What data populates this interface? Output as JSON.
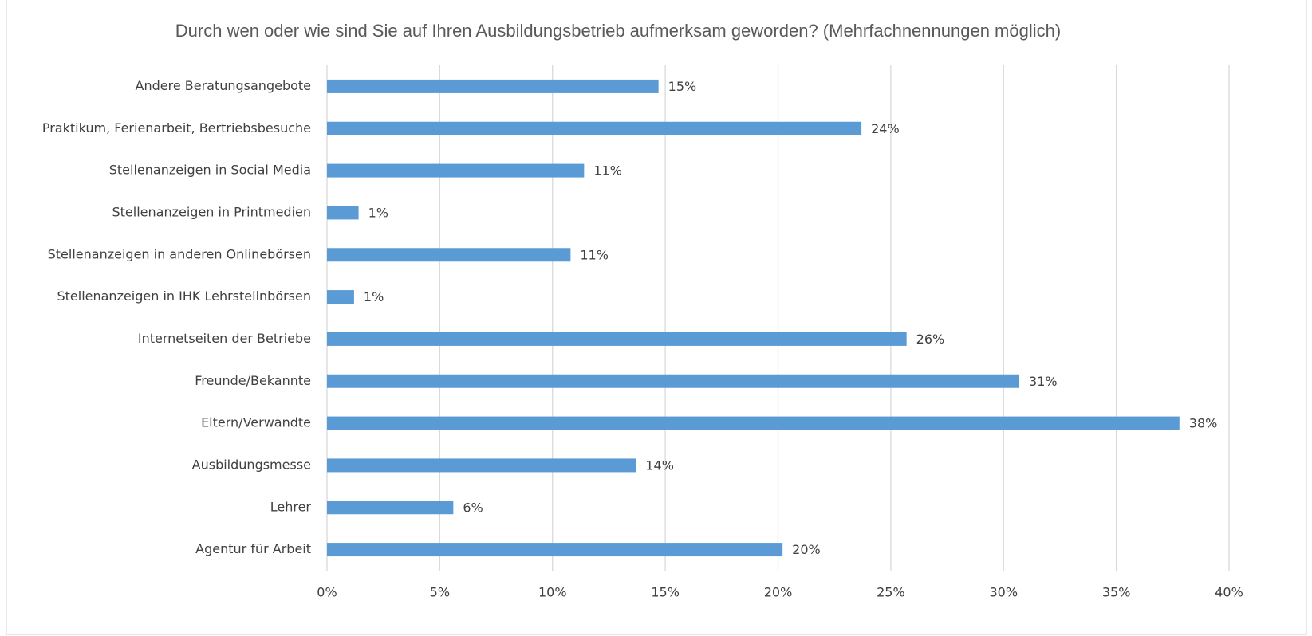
{
  "chart_data": {
    "type": "bar",
    "orientation": "horizontal",
    "title": "Durch wen oder wie sind Sie auf Ihren Ausbildungsbetrieb aufmerksam geworden? (Mehrfachnennungen möglich)",
    "categories": [
      "Andere Beratungsangebote",
      "Praktikum, Ferienarbeit, Bertriebsbesuche",
      "Stellenanzeigen in Social Media",
      "Stellenanzeigen in Printmedien",
      "Stellenanzeigen in anderen Onlinebörsen",
      "Stellenanzeigen in IHK Lehrstellnbörsen",
      "Internetseiten der Betriebe",
      "Freunde/Bekannte",
      "Eltern/Verwandte",
      "Ausbildungsmesse",
      "Lehrer",
      "Agentur für Arbeit"
    ],
    "values": [
      14.7,
      23.7,
      11.4,
      1.4,
      10.8,
      1.2,
      25.7,
      30.7,
      37.8,
      13.7,
      5.6,
      20.2
    ],
    "value_labels": [
      "15%",
      "24%",
      "11%",
      "1%",
      "11%",
      "1%",
      "26%",
      "31%",
      "38%",
      "14%",
      "6%",
      "20%"
    ],
    "color": "#5b9bd5",
    "xlim": [
      0,
      40
    ],
    "xticks": [
      {
        "value": 0,
        "label": "0%"
      },
      {
        "value": 5,
        "label": "5%"
      },
      {
        "value": 10,
        "label": "10%"
      },
      {
        "value": 15,
        "label": "15%"
      },
      {
        "value": 20,
        "label": "20%"
      },
      {
        "value": 25,
        "label": "25%"
      },
      {
        "value": 30,
        "label": "30%"
      },
      {
        "value": 35,
        "label": "35%"
      },
      {
        "value": 40,
        "label": "40%"
      }
    ],
    "grid": true
  }
}
